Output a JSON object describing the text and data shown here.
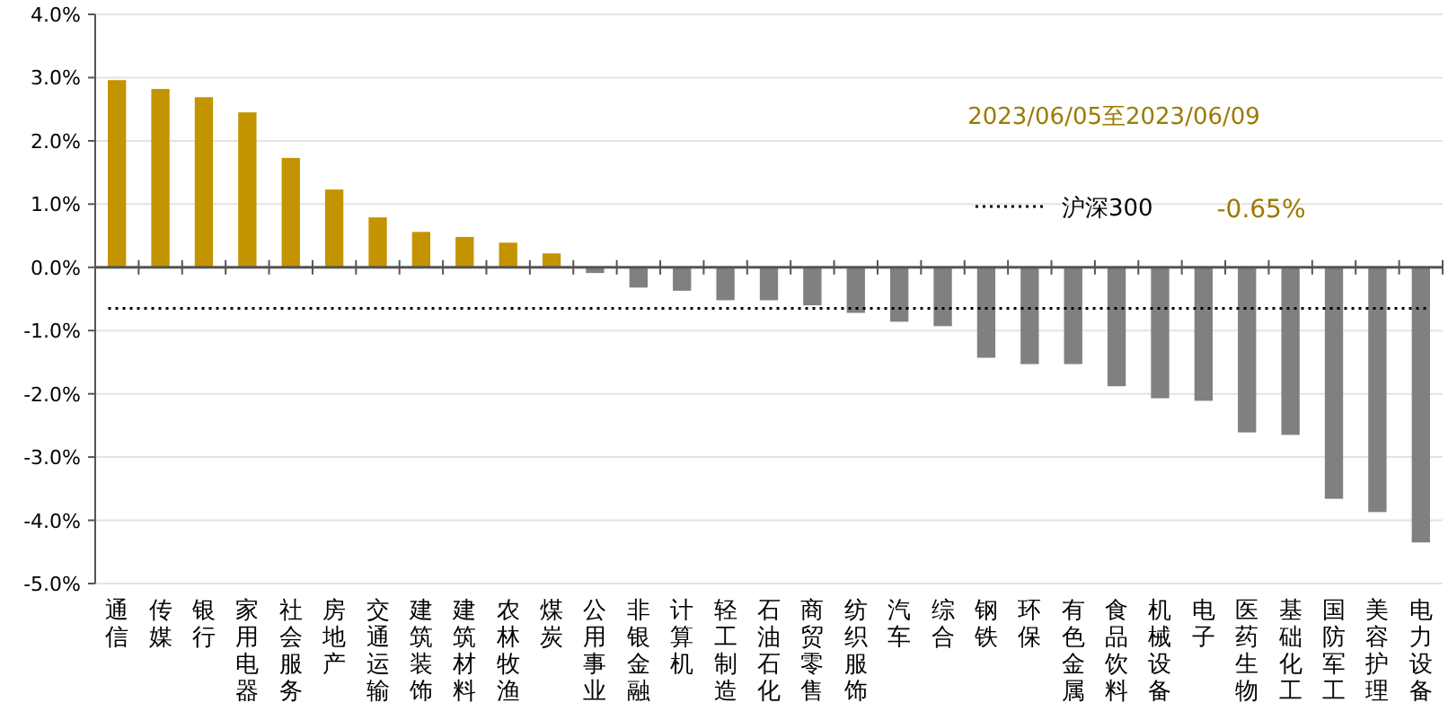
{
  "chart_data": {
    "type": "bar",
    "categories": [
      "通信",
      "传媒",
      "银行",
      "家用电器",
      "社会服务",
      "房地产",
      "交通运输",
      "建筑装饰",
      "建筑材料",
      "农林牧渔",
      "煤炭",
      "公用事业",
      "非银金融",
      "计算机",
      "轻工制造",
      "石油石化",
      "商贸零售",
      "纺织服饰",
      "汽车",
      "综合",
      "钢铁",
      "环保",
      "有色金属",
      "食品饮料",
      "机械设备",
      "电子",
      "医药生物",
      "基础化工",
      "国防军工",
      "美容护理",
      "电力设备"
    ],
    "values": [
      2.96,
      2.82,
      2.69,
      2.45,
      1.73,
      1.23,
      0.79,
      0.56,
      0.48,
      0.39,
      0.22,
      -0.09,
      -0.32,
      -0.37,
      -0.52,
      -0.52,
      -0.6,
      -0.72,
      -0.86,
      -0.93,
      -1.43,
      -1.53,
      -1.53,
      -1.88,
      -2.07,
      -2.11,
      -2.61,
      -2.65,
      -3.66,
      -3.87,
      -4.35
    ],
    "colors": [
      "#c39400",
      "#c39400",
      "#c39400",
      "#c39400",
      "#c39400",
      "#c39400",
      "#c39400",
      "#c39400",
      "#c39400",
      "#c39400",
      "#c39400",
      "#808080",
      "#808080",
      "#808080",
      "#808080",
      "#808080",
      "#808080",
      "#808080",
      "#808080",
      "#808080",
      "#808080",
      "#808080",
      "#808080",
      "#808080",
      "#808080",
      "#808080",
      "#808080",
      "#808080",
      "#808080",
      "#808080",
      "#808080"
    ],
    "ylim": [
      -5,
      4
    ],
    "yticks": [
      {
        "value": 4,
        "label": "4.0%"
      },
      {
        "value": 3,
        "label": "3.0%"
      },
      {
        "value": 2,
        "label": "2.0%"
      },
      {
        "value": 1,
        "label": "1.0%"
      },
      {
        "value": 0,
        "label": "0.0%"
      },
      {
        "value": -1,
        "label": "-1.0%"
      },
      {
        "value": -2,
        "label": "-2.0%"
      },
      {
        "value": -3,
        "label": "-3.0%"
      },
      {
        "value": -4,
        "label": "-4.0%"
      },
      {
        "value": -5,
        "label": "-5.0%"
      }
    ],
    "grid": "y",
    "ref_lines": [
      {
        "axis": "y",
        "value": -0.65,
        "label": "沪深300",
        "line_style": "dotted",
        "color": "#000000"
      }
    ],
    "annotations": [
      "2023/06/05至2023/06/09",
      "-0.65%"
    ]
  }
}
